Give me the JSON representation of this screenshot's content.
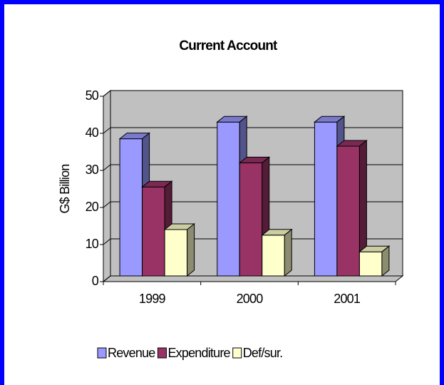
{
  "chart_data": {
    "type": "bar3d",
    "title": "Current Account",
    "y_label": "G$ Billion",
    "categories": [
      "1999",
      "2000",
      "2001"
    ],
    "series": [
      {
        "name": "Revenue",
        "color": "#9999ff",
        "values": [
          37,
          41.5,
          41.5
        ]
      },
      {
        "name": "Expenditure",
        "color": "#993366",
        "values": [
          24,
          30.5,
          35
        ]
      },
      {
        "name": "Def/sur.",
        "color": "#ffffcc",
        "values": [
          12.5,
          11,
          6.5
        ]
      }
    ],
    "ylim": [
      0,
      50
    ],
    "yticks": [
      0,
      10,
      20,
      30,
      40,
      50
    ],
    "grid": true,
    "legend": "bottom"
  }
}
